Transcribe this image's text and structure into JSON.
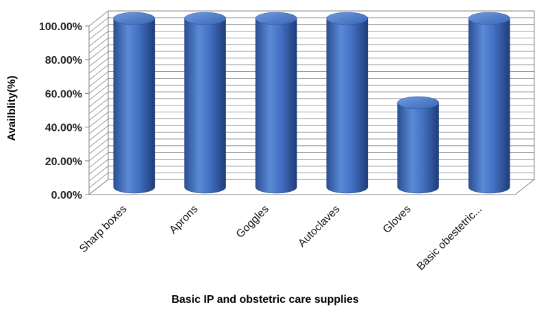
{
  "chart_data": {
    "type": "bar",
    "style": "3d-cylinder",
    "categories": [
      "Sharp boxes",
      "Aprons",
      "Goggles",
      "Autoclaves",
      "Gloves",
      "Basic obestetric..."
    ],
    "series": [
      {
        "values": [
          100,
          100,
          100,
          100,
          50,
          100
        ]
      }
    ],
    "yticks": [
      "0.00%",
      "20.00%",
      "40.00%",
      "60.00%",
      "80.00%",
      "100.00%"
    ],
    "ylim": [
      0,
      100
    ],
    "xlabel": "Basic IP and obstetric care supplies",
    "ylabel": "Availblity(%)",
    "grid": true,
    "legend": "none",
    "colors": {
      "bar": "#4472C4",
      "bar_dark": "#1F3D7A",
      "grid": "#7F7F7F"
    }
  }
}
